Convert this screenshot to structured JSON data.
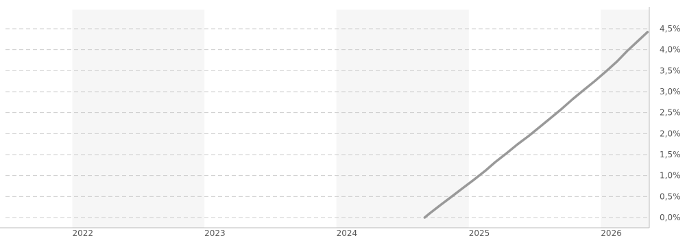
{
  "chart_data": {
    "type": "line",
    "title": "",
    "xlabel": "",
    "ylabel": "",
    "x_ticks": [
      "2022",
      "2023",
      "2024",
      "2025",
      "2026"
    ],
    "y_ticks": [
      "0,0%",
      "0,5%",
      "1,0%",
      "1,5%",
      "2,0%",
      "2,5%",
      "3,0%",
      "3,5%",
      "4,0%",
      "4,5%"
    ],
    "ylim": [
      0,
      4.5
    ],
    "y_unit": "%",
    "xlim": [
      "2021-06-15",
      "2026-05-15"
    ],
    "grid": true,
    "alternating_year_bands": true,
    "series_color": "#999999",
    "band_color": "#f6f6f6",
    "series": [
      {
        "x": [
          "2024-09-01",
          "2024-09-15",
          "2024-10-15",
          "2024-11-15",
          "2024-12-15",
          "2025-01-15",
          "2025-02-15",
          "2025-03-15",
          "2025-04-15",
          "2025-05-15",
          "2025-06-15",
          "2025-07-15",
          "2025-08-15",
          "2025-09-15",
          "2025-10-15",
          "2025-11-15",
          "2025-12-15",
          "2026-01-15",
          "2026-02-15",
          "2026-03-15",
          "2026-04-15",
          "2026-05-10"
        ],
        "values": [
          0.0,
          0.1,
          0.3,
          0.5,
          0.7,
          0.9,
          1.11,
          1.32,
          1.53,
          1.74,
          1.94,
          2.15,
          2.37,
          2.59,
          2.82,
          3.04,
          3.25,
          3.48,
          3.72,
          3.97,
          4.22,
          4.42
        ]
      }
    ]
  }
}
